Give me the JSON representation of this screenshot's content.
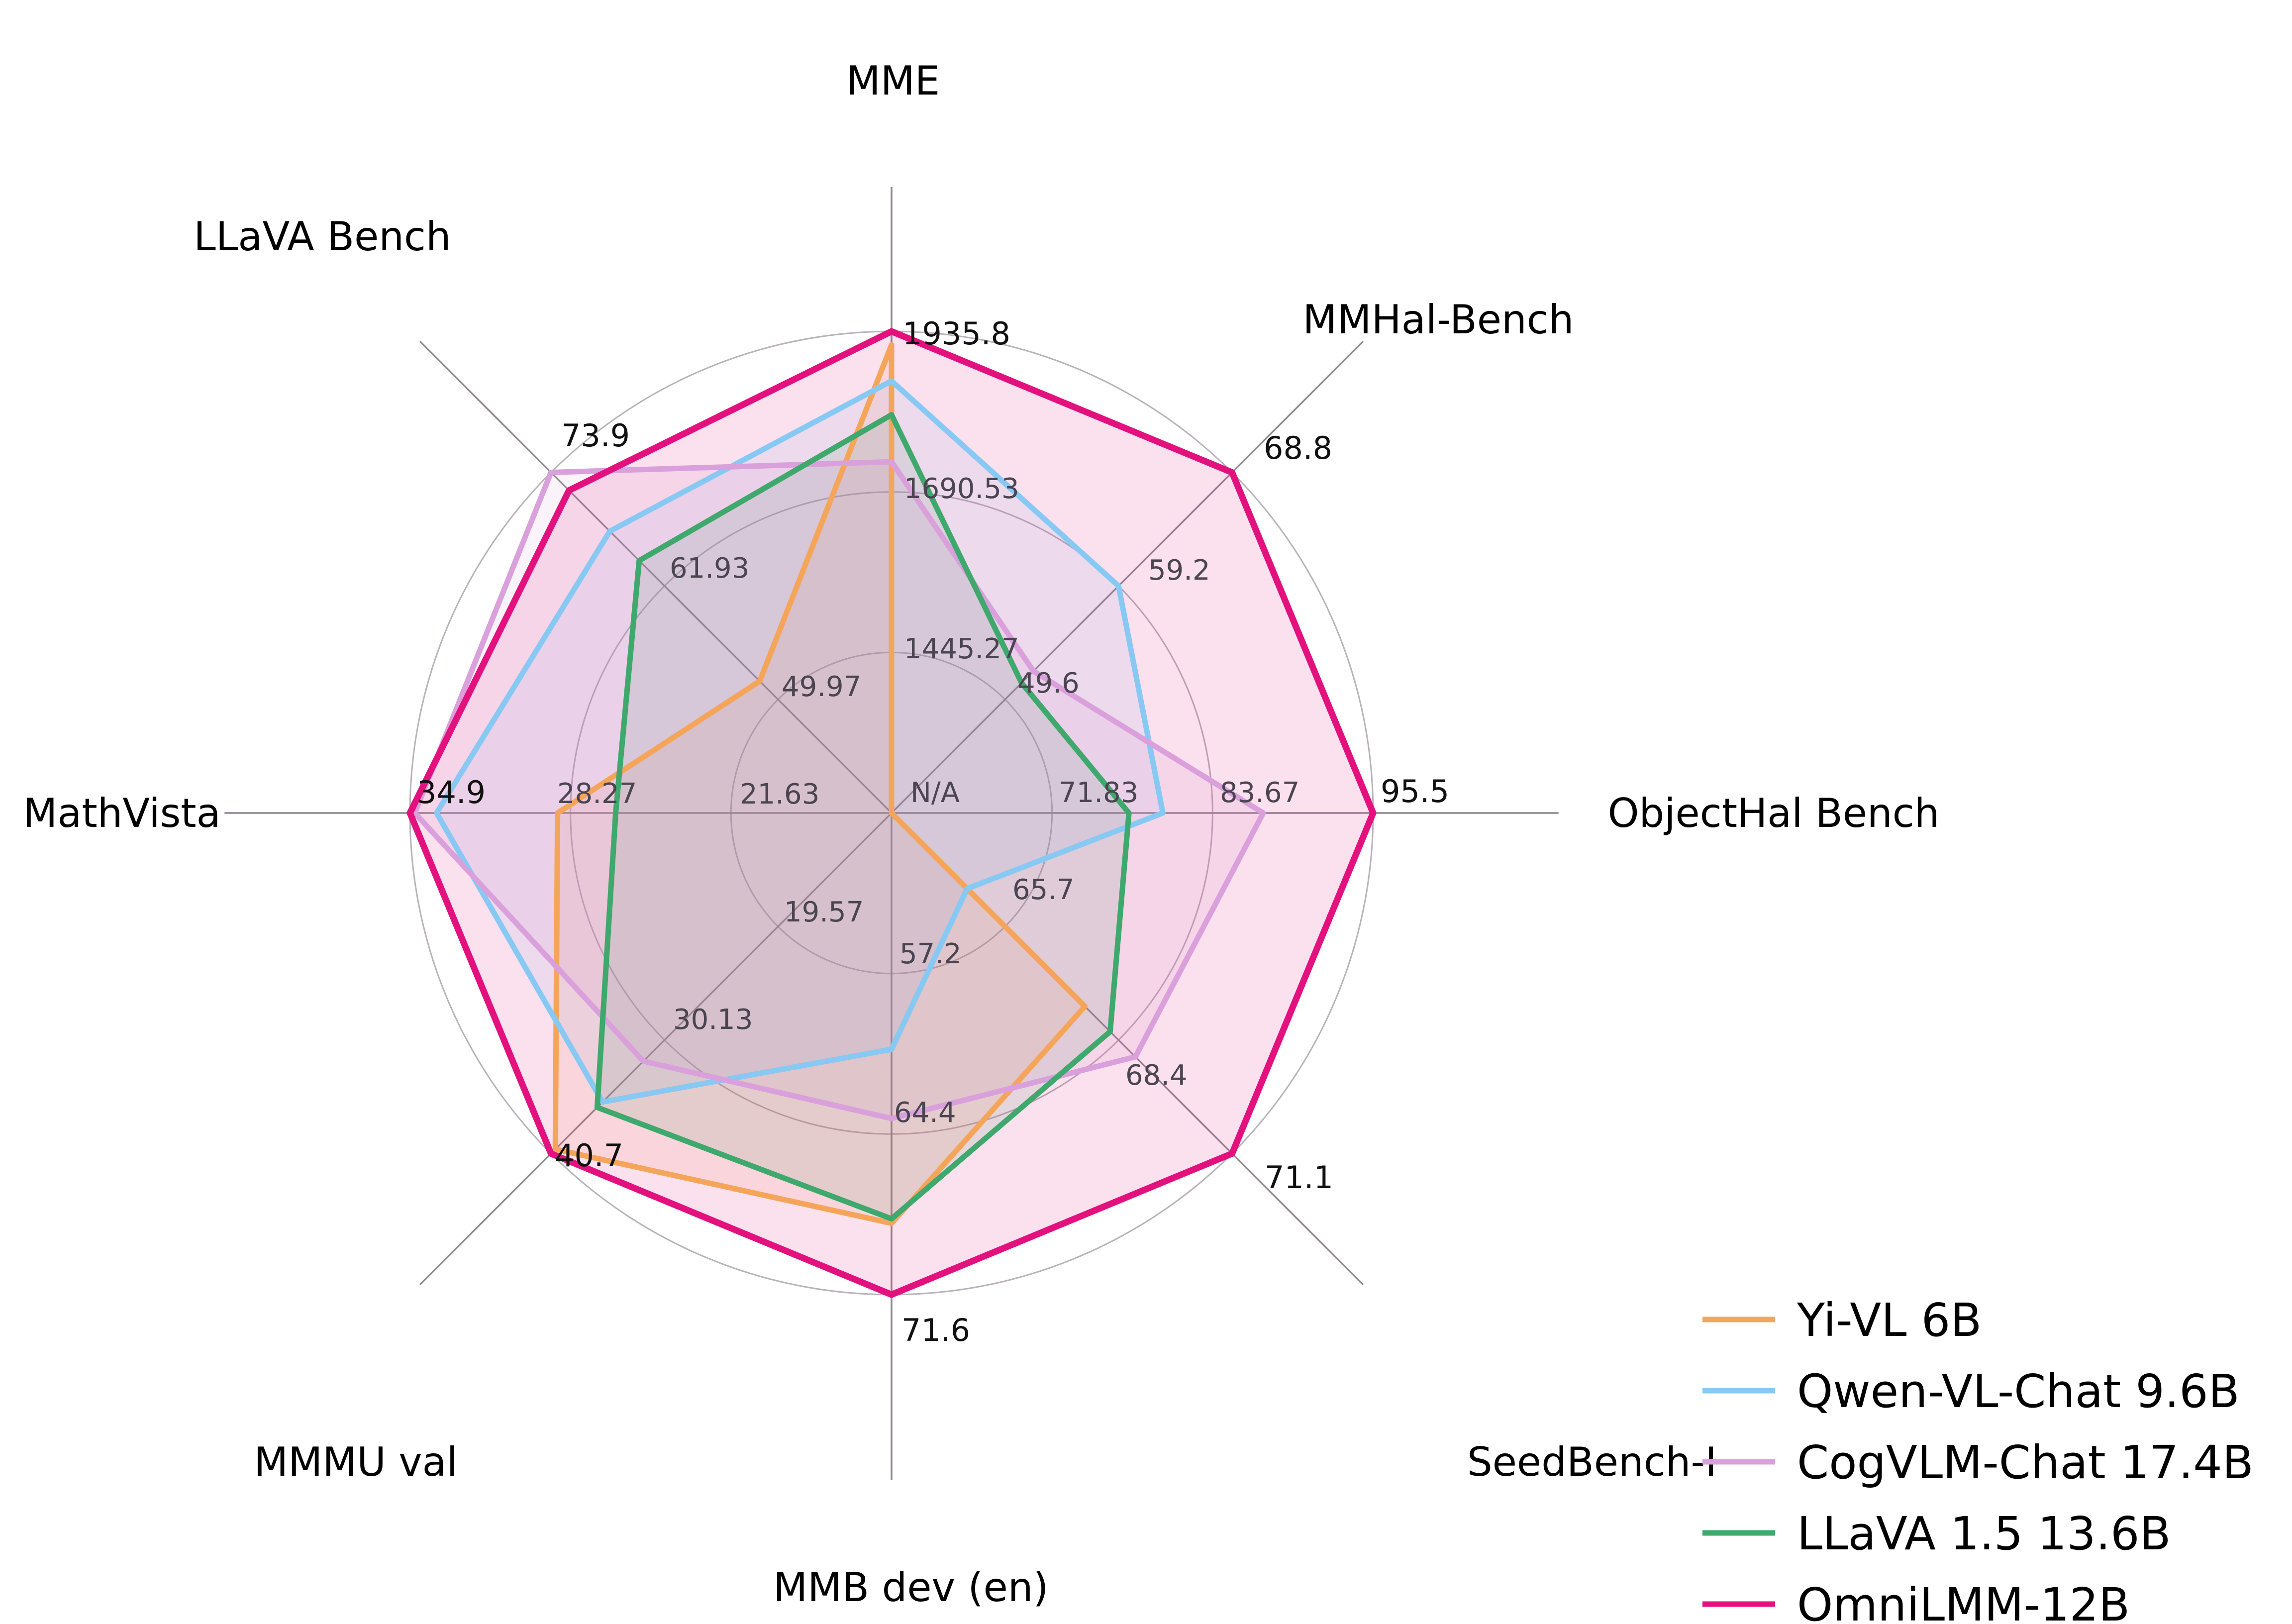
{
  "chart_data": {
    "type": "radar",
    "title": "",
    "grid": true,
    "rings_per_axis": 3,
    "legend_position": "lower right",
    "center_label": "N/A",
    "axes": [
      {
        "label": "MME",
        "min": 1200,
        "max": 1935.8,
        "ticks": [
          "1935.8",
          "1690.53",
          "1445.27"
        ]
      },
      {
        "label": "MMHal-Bench",
        "min": 40,
        "max": 68.8,
        "ticks": [
          "68.8",
          "59.2",
          "49.6"
        ]
      },
      {
        "label": "ObjectHal Bench",
        "min": 60,
        "max": 95.5,
        "ticks": [
          "95.5",
          "83.67",
          "71.83"
        ]
      },
      {
        "label": "SeedBench-I",
        "min": 63,
        "max": 71.1,
        "ticks": [
          "71.1",
          "68.4",
          "65.7"
        ]
      },
      {
        "label": "MMB dev (en)",
        "min": 50,
        "max": 71.6,
        "ticks": [
          "71.6",
          "64.4",
          "57.2"
        ]
      },
      {
        "label": "MMMU val",
        "min": 9,
        "max": 40.7,
        "ticks": [
          "40.7",
          "30.13",
          "19.57"
        ]
      },
      {
        "label": "MathVista",
        "min": 15,
        "max": 34.9,
        "ticks": [
          "34.9",
          "28.27",
          "21.63"
        ]
      },
      {
        "label": "LLaVA Bench",
        "min": 38,
        "max": 73.9,
        "ticks": [
          "73.9",
          "61.93",
          "49.97"
        ]
      }
    ],
    "series": [
      {
        "name": "Yi-VL 6B",
        "color": "#F5A55A",
        "values": [
          1915.1,
          null,
          null,
          67.6,
          68.4,
          40.3,
          28.8,
          51.9
        ]
      },
      {
        "name": "Qwen-VL-Chat 9.6B",
        "color": "#87C9F2",
        "values": [
          1860.0,
          59.2,
          80.0,
          64.8,
          60.6,
          35.9,
          33.8,
          67.7
        ]
      },
      {
        "name": "CogVLM-Chat 17.4B",
        "color": "#D9A0DB",
        "values": [
          1736.6,
          52.0,
          87.4,
          68.8,
          63.7,
          32.1,
          34.7,
          73.9
        ]
      },
      {
        "name": "LLaVA 1.5 13.6B",
        "color": "#3FA86C",
        "values": [
          1808.4,
          51.0,
          77.5,
          68.2,
          68.2,
          36.4,
          26.4,
          64.6
        ]
      },
      {
        "name": "OmniLMM-12B",
        "color": "#E3117E",
        "values": [
          1935.8,
          68.8,
          95.5,
          71.1,
          71.6,
          40.7,
          34.9,
          72.0
        ]
      }
    ],
    "colors": {
      "grid_ring": "#b9b2ba",
      "axis_spoke": "#8f8a91",
      "tick_outer_text": "#111111",
      "tick_inner_text": "#4a4550",
      "background": "#ffffff"
    }
  }
}
